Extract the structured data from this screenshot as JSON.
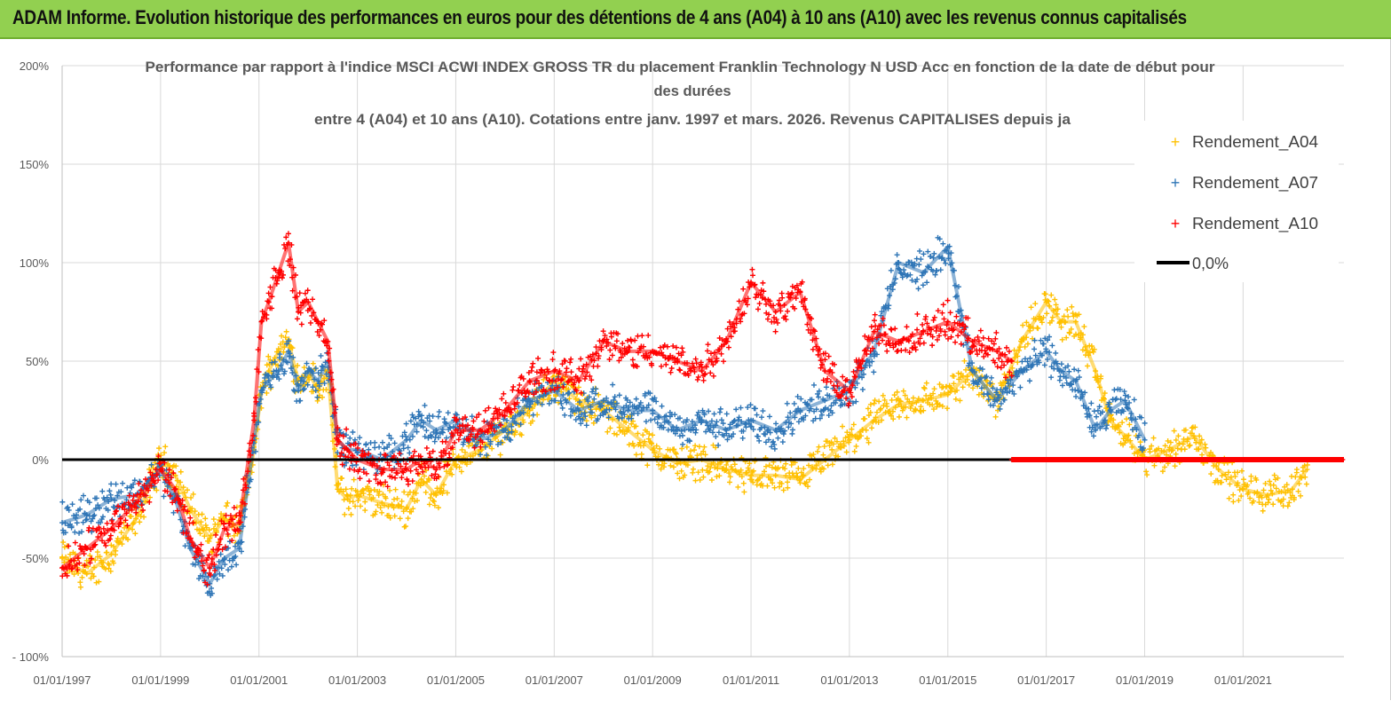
{
  "banner": {
    "title": "ADAM Informe. Evolution historique des performances en euros pour des détentions de 4 ans (A04) à 10 ans (A10) avec les revenus connus capitalisés"
  },
  "colors": {
    "banner_bg": "#92d050",
    "a04": "#ffc000",
    "a07": "#2e75b6",
    "a10": "#ff0000",
    "zero": "#000000",
    "grid": "#d9d9d9",
    "title": "#595959"
  },
  "chart_data": {
    "type": "scatter",
    "title_lines": [
      "Performance par rapport à l'indice MSCI ACWI INDEX GROSS TR  du placement Franklin Technology N USD Acc en fonction de la date de début pour",
      "des durées",
      "entre 4 (A04) et 10 ans (A10). Cotations entre janv. 1997 et mars. 2026. Revenus CAPITALISES depuis ja"
    ],
    "x_range": [
      1997.0,
      2023.05
    ],
    "y_range": [
      -100,
      200
    ],
    "y_ticks": [
      200,
      150,
      100,
      50,
      0,
      -50,
      -100
    ],
    "y_tick_labels": [
      "200%",
      "150%",
      "100%",
      "50%",
      "0%",
      "-50%",
      "- 100%"
    ],
    "x_ticks": [
      1997,
      1999,
      2001,
      2003,
      2005,
      2007,
      2009,
      2011,
      2013,
      2015,
      2017,
      2019,
      2021
    ],
    "x_tick_labels": [
      "01/01/1997",
      "01/01/1999",
      "01/01/2001",
      "01/01/2003",
      "01/01/2005",
      "01/01/2007",
      "01/01/2009",
      "01/01/2011",
      "01/01/2013",
      "01/01/2015",
      "01/01/2017",
      "01/01/2019",
      "01/01/2021"
    ],
    "legend": [
      {
        "label": "Rendement_A04",
        "key": "a04"
      },
      {
        "label": "Rendement_A07",
        "key": "a07"
      },
      {
        "label": "Rendement_A10",
        "key": "a10"
      },
      {
        "label": "0,0%",
        "key": "zero"
      }
    ],
    "series": [
      {
        "name": "Rendement_A04",
        "key": "a04",
        "x": [
          1997.0,
          1997.5,
          1998.0,
          1998.5,
          1999.0,
          1999.3,
          1999.6,
          2000.0,
          2000.3,
          2000.6,
          2000.9,
          2001.05,
          2001.2,
          2001.4,
          2001.6,
          2001.8,
          2002.0,
          2002.2,
          2002.4,
          2002.6,
          2002.8,
          2003.0,
          2003.5,
          2004.0,
          2004.3,
          2004.6,
          2005.0,
          2005.5,
          2006.0,
          2006.5,
          2007.0,
          2007.5,
          2008.0,
          2008.5,
          2009.0,
          2009.5,
          2010.0,
          2010.5,
          2011.0,
          2011.5,
          2012.0,
          2012.5,
          2013.0,
          2013.5,
          2014.0,
          2014.5,
          2015.0,
          2015.5,
          2016.0,
          2016.5,
          2017.0,
          2017.3,
          2017.6,
          2018.0,
          2018.3,
          2018.6,
          2019.0,
          2019.5,
          2020.0,
          2020.5,
          2021.0,
          2021.5,
          2022.0,
          2022.3
        ],
        "y": [
          -50,
          -58,
          -48,
          -30,
          0,
          -8,
          -25,
          -40,
          -30,
          -35,
          5,
          35,
          45,
          55,
          60,
          40,
          45,
          35,
          45,
          -15,
          -20,
          -18,
          -22,
          -25,
          -10,
          -18,
          0,
          5,
          15,
          25,
          40,
          30,
          25,
          15,
          5,
          -2,
          0,
          -5,
          -8,
          -8,
          -10,
          0,
          10,
          20,
          28,
          30,
          33,
          45,
          30,
          60,
          80,
          70,
          70,
          45,
          20,
          12,
          0,
          5,
          12,
          -5,
          -15,
          -18,
          -15,
          -5
        ]
      },
      {
        "name": "Rendement_A07",
        "key": "a07",
        "x": [
          1997.0,
          1997.5,
          1998.0,
          1998.5,
          1999.0,
          1999.3,
          1999.6,
          2000.0,
          2000.3,
          2000.6,
          2000.9,
          2001.05,
          2001.2,
          2001.4,
          2001.6,
          2001.8,
          2002.0,
          2002.2,
          2002.4,
          2002.6,
          2002.8,
          2003.0,
          2003.5,
          2004.0,
          2004.3,
          2004.6,
          2005.0,
          2005.5,
          2006.0,
          2006.5,
          2007.0,
          2007.5,
          2008.0,
          2008.5,
          2009.0,
          2009.5,
          2010.0,
          2010.5,
          2011.0,
          2011.5,
          2012.0,
          2012.5,
          2013.0,
          2013.5,
          2014.0,
          2014.5,
          2015.0,
          2015.5,
          2016.0,
          2016.5,
          2017.0,
          2017.3,
          2017.6,
          2018.0,
          2018.3,
          2018.6,
          2019.0
        ],
        "y": [
          -32,
          -28,
          -20,
          -18,
          -5,
          -20,
          -45,
          -63,
          -50,
          -45,
          10,
          35,
          40,
          45,
          55,
          35,
          45,
          40,
          50,
          10,
          5,
          5,
          0,
          10,
          20,
          15,
          20,
          10,
          15,
          30,
          35,
          25,
          30,
          25,
          25,
          15,
          20,
          15,
          20,
          15,
          25,
          30,
          35,
          55,
          100,
          95,
          108,
          45,
          30,
          45,
          55,
          45,
          40,
          15,
          25,
          30,
          10
        ]
      },
      {
        "name": "Rendement_A10",
        "key": "a10",
        "x": [
          1997.0,
          1997.5,
          1998.0,
          1998.5,
          1999.0,
          1999.3,
          1999.6,
          2000.0,
          2000.3,
          2000.6,
          2000.9,
          2001.05,
          2001.2,
          2001.4,
          2001.6,
          2001.8,
          2002.0,
          2002.2,
          2002.4,
          2002.6,
          2002.8,
          2003.0,
          2003.5,
          2004.0,
          2004.3,
          2004.6,
          2005.0,
          2005.5,
          2006.0,
          2006.5,
          2007.0,
          2007.5,
          2008.0,
          2008.5,
          2009.0,
          2009.5,
          2010.0,
          2010.5,
          2011.0,
          2011.5,
          2012.0,
          2012.5,
          2013.0,
          2013.5,
          2014.0,
          2014.5,
          2015.0,
          2015.5,
          2016.0,
          2016.3
        ],
        "y": [
          -55,
          -45,
          -35,
          -22,
          -5,
          -15,
          -40,
          -55,
          -35,
          -32,
          20,
          70,
          80,
          95,
          110,
          75,
          80,
          70,
          60,
          10,
          5,
          0,
          -5,
          -5,
          0,
          -5,
          15,
          15,
          25,
          40,
          45,
          40,
          60,
          55,
          55,
          50,
          45,
          60,
          90,
          75,
          85,
          45,
          35,
          65,
          60,
          65,
          70,
          60,
          55,
          50
        ]
      }
    ],
    "zero_line": {
      "label": "0,0%",
      "value": 0
    },
    "a10_zero_from": 2016.3
  }
}
